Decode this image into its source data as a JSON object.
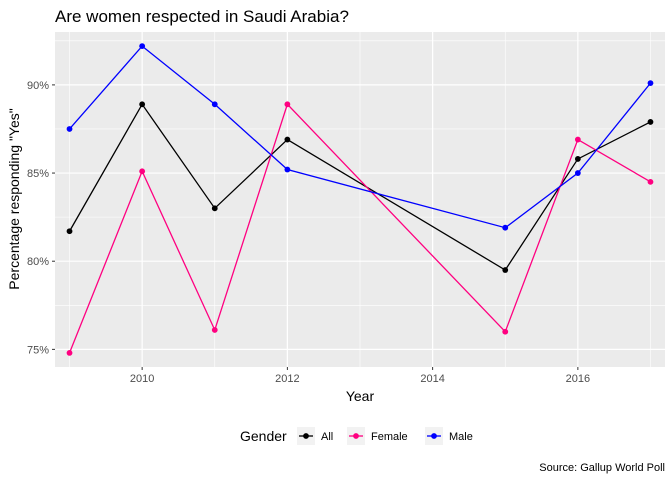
{
  "chart_data": {
    "type": "line",
    "title": "Are women respected in Saudi Arabia?",
    "xlabel": "Year",
    "ylabel": "Percentage responding \"Yes\"",
    "caption": "Source: Gallup World Poll",
    "x_ticks": [
      2010,
      2012,
      2014,
      2016
    ],
    "y_ticks": [
      75,
      80,
      85,
      90
    ],
    "y_tick_labels": [
      "75%",
      "80%",
      "85%",
      "90%"
    ],
    "xlim": [
      2008.8,
      2017.2
    ],
    "ylim": [
      74.0,
      93.0
    ],
    "grid": true,
    "legend": {
      "title": "Gender",
      "position": "bottom",
      "entries": [
        "All",
        "Female",
        "Male"
      ]
    },
    "series": [
      {
        "name": "All",
        "color": "#000000",
        "x": [
          2009,
          2010,
          2011,
          2012,
          2015,
          2016,
          2017
        ],
        "y": [
          81.7,
          88.9,
          83.0,
          86.9,
          79.5,
          85.8,
          87.9
        ]
      },
      {
        "name": "Female",
        "color": "#FF0080",
        "x": [
          2009,
          2010,
          2011,
          2012,
          2015,
          2016,
          2017
        ],
        "y": [
          74.8,
          85.1,
          76.1,
          88.9,
          76.0,
          86.9,
          84.5
        ]
      },
      {
        "name": "Male",
        "color": "#0000FF",
        "x": [
          2009,
          2010,
          2011,
          2012,
          2015,
          2016,
          2017
        ],
        "y": [
          87.5,
          92.2,
          88.9,
          85.2,
          81.9,
          85.0,
          90.1
        ]
      }
    ]
  }
}
